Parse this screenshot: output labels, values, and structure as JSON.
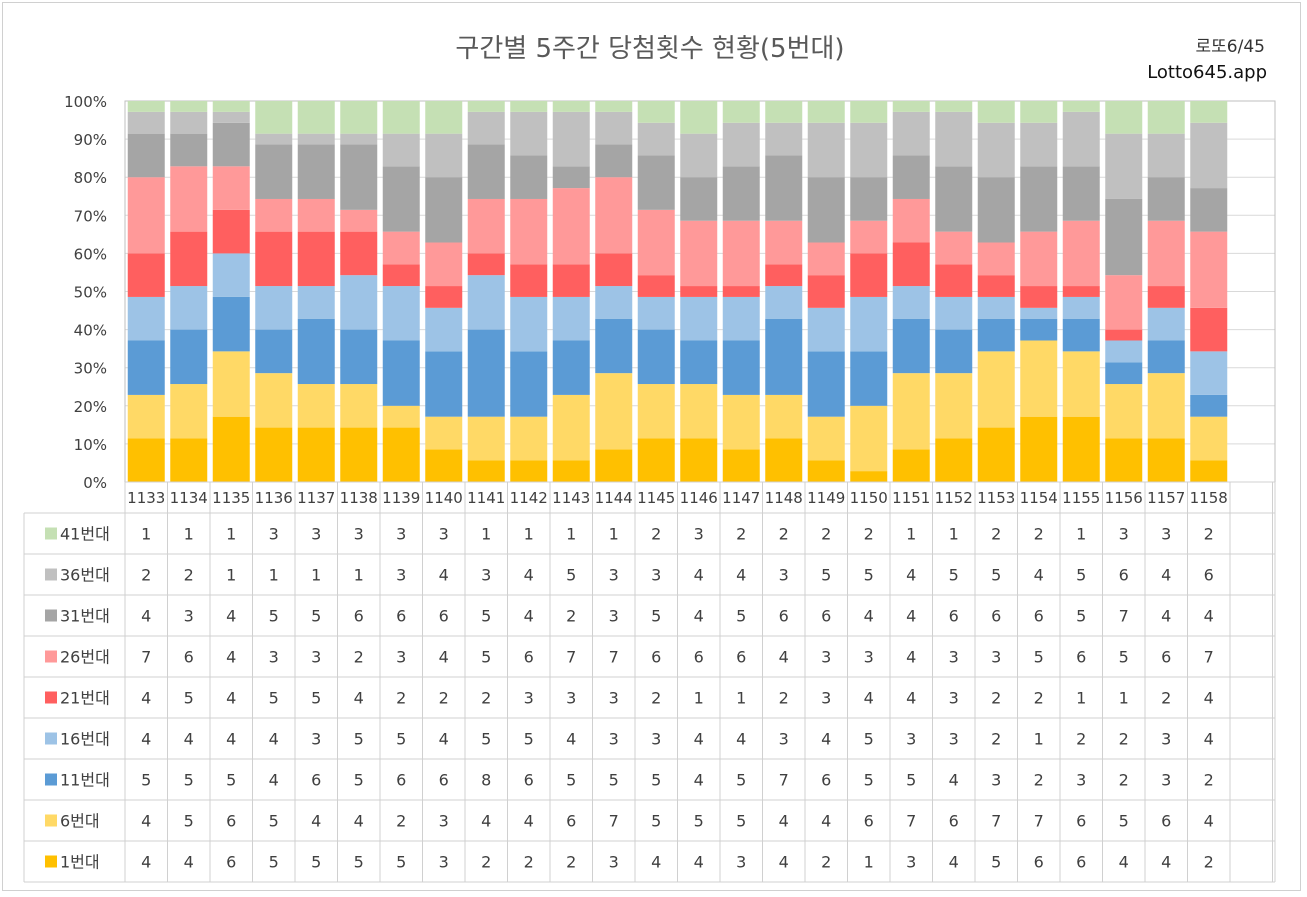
{
  "title": "구간별 5주간 당첨횟수 현황(5번대)",
  "brand": {
    "line1": "로또6/45",
    "line2": "Lotto645.app"
  },
  "chart_data": {
    "type": "bar",
    "stacked": "percent",
    "title": "구간별 5주간 당첨횟수 현황(5번대)",
    "yticks": [
      "0%",
      "10%",
      "20%",
      "30%",
      "40%",
      "50%",
      "60%",
      "70%",
      "80%",
      "90%",
      "100%"
    ],
    "ylim": [
      0,
      100
    ],
    "grid": true,
    "legend": "data-table",
    "categories": [
      "1133",
      "1134",
      "1135",
      "1136",
      "1137",
      "1138",
      "1139",
      "1140",
      "1141",
      "1142",
      "1143",
      "1144",
      "1145",
      "1146",
      "1147",
      "1148",
      "1149",
      "1150",
      "1151",
      "1152",
      "1153",
      "1154",
      "1155",
      "1156",
      "1157",
      "1158"
    ],
    "series": [
      {
        "name": "1번대",
        "color": "#ffc000",
        "values": [
          4,
          4,
          6,
          5,
          5,
          5,
          5,
          3,
          2,
          2,
          2,
          3,
          4,
          4,
          3,
          4,
          2,
          1,
          3,
          4,
          5,
          6,
          6,
          4,
          4,
          2
        ]
      },
      {
        "name": "6번대",
        "color": "#ffd966",
        "values": [
          4,
          5,
          6,
          5,
          4,
          4,
          2,
          3,
          4,
          4,
          6,
          7,
          5,
          5,
          5,
          4,
          4,
          6,
          7,
          6,
          7,
          7,
          6,
          5,
          6,
          4
        ]
      },
      {
        "name": "11번대",
        "color": "#5b9bd5",
        "values": [
          5,
          5,
          5,
          4,
          6,
          5,
          6,
          6,
          8,
          6,
          5,
          5,
          5,
          4,
          5,
          7,
          6,
          5,
          5,
          4,
          3,
          2,
          3,
          2,
          3,
          2
        ]
      },
      {
        "name": "16번대",
        "color": "#9dc3e6",
        "values": [
          4,
          4,
          4,
          4,
          3,
          5,
          5,
          4,
          5,
          5,
          4,
          3,
          3,
          4,
          4,
          3,
          4,
          5,
          3,
          3,
          2,
          1,
          2,
          2,
          3,
          4
        ]
      },
      {
        "name": "21번대",
        "color": "#ff5f5f",
        "values": [
          4,
          5,
          4,
          5,
          5,
          4,
          2,
          2,
          2,
          3,
          3,
          3,
          2,
          1,
          1,
          2,
          3,
          4,
          4,
          3,
          2,
          2,
          1,
          1,
          2,
          4
        ]
      },
      {
        "name": "26번대",
        "color": "#ff9999",
        "values": [
          7,
          6,
          4,
          3,
          3,
          2,
          3,
          4,
          5,
          6,
          7,
          7,
          6,
          6,
          6,
          4,
          3,
          3,
          4,
          3,
          3,
          5,
          6,
          5,
          6,
          7
        ]
      },
      {
        "name": "31번대",
        "color": "#a5a5a5",
        "values": [
          4,
          3,
          4,
          5,
          5,
          6,
          6,
          6,
          5,
          4,
          2,
          3,
          5,
          4,
          5,
          6,
          6,
          4,
          4,
          6,
          6,
          6,
          5,
          7,
          4,
          4
        ]
      },
      {
        "name": "36번대",
        "color": "#c0c0c0",
        "values": [
          2,
          2,
          1,
          1,
          1,
          1,
          3,
          4,
          3,
          4,
          5,
          3,
          3,
          4,
          4,
          3,
          5,
          5,
          4,
          5,
          5,
          4,
          5,
          6,
          4,
          6
        ]
      },
      {
        "name": "41번대",
        "color": "#c5e0b4",
        "values": [
          1,
          1,
          1,
          3,
          3,
          3,
          3,
          3,
          1,
          1,
          1,
          1,
          2,
          3,
          2,
          2,
          2,
          2,
          1,
          1,
          2,
          2,
          1,
          3,
          3,
          2
        ]
      }
    ]
  }
}
